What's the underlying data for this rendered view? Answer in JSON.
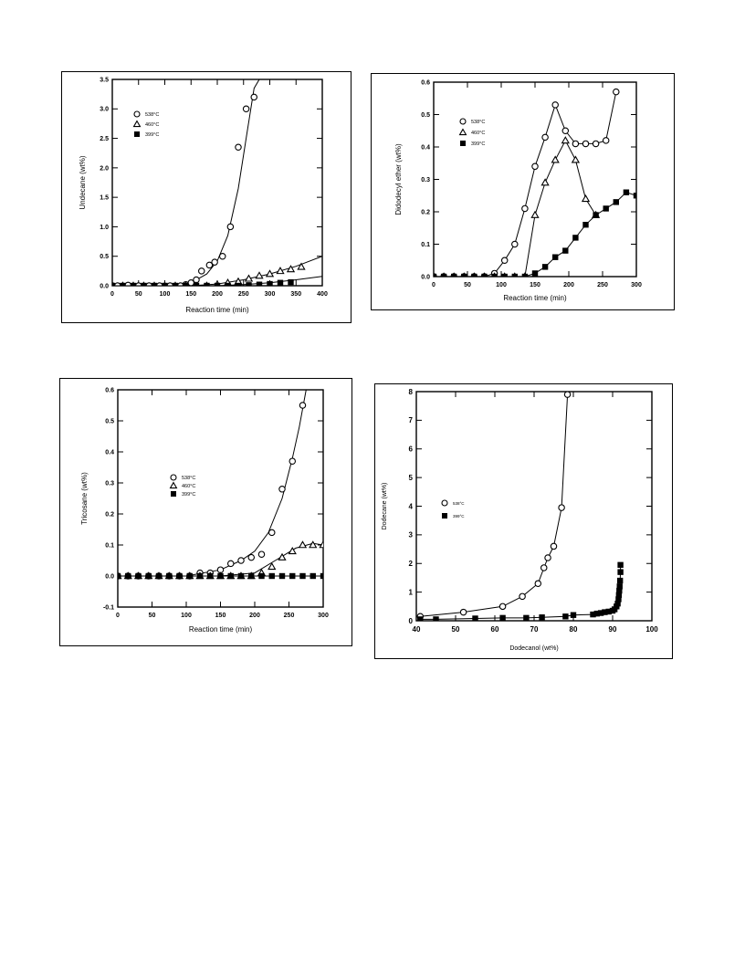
{
  "chart_data": [
    {
      "type": "scatter",
      "xlabel": "Reaction time (min)",
      "ylabel": "Undecane (wt%)",
      "xlim": [
        0,
        400
      ],
      "ylim": [
        0,
        3.5
      ],
      "xticks": [
        0,
        50,
        100,
        150,
        200,
        250,
        300,
        350,
        400
      ],
      "yticks": [
        0.0,
        0.5,
        1.0,
        1.5,
        2.0,
        2.5,
        3.0,
        3.5
      ],
      "xtick_labels": [
        "0",
        "50",
        "100",
        "150",
        "200",
        "250",
        "300",
        "350",
        "400"
      ],
      "ytick_labels": [
        "0.0",
        "0.5",
        "1.0",
        "1.5",
        "2.0",
        "2.5",
        "3.0",
        "3.5"
      ],
      "legend_position": "top-left",
      "series": [
        {
          "name": "538°C",
          "marker": "circle-open",
          "x": [
            0,
            10,
            30,
            50,
            70,
            90,
            110,
            130,
            140,
            150,
            160,
            170,
            185,
            195,
            210,
            225,
            240,
            255,
            270
          ],
          "y": [
            0,
            0,
            0.01,
            0,
            0,
            0,
            0,
            0,
            0.02,
            0.05,
            0.1,
            0.25,
            0.35,
            0.4,
            0.5,
            1.0,
            2.35,
            3.0,
            3.2
          ],
          "fit_x": [
            0,
            100,
            150,
            180,
            200,
            220,
            240,
            255,
            270,
            280
          ],
          "fit_y": [
            0,
            0,
            0.05,
            0.2,
            0.42,
            0.85,
            1.65,
            2.5,
            3.35,
            3.5
          ]
        },
        {
          "name": "460°C",
          "marker": "triangle-open",
          "x": [
            0,
            20,
            40,
            60,
            80,
            100,
            120,
            140,
            160,
            180,
            200,
            220,
            240,
            260,
            280,
            300,
            320,
            340,
            360
          ],
          "y": [
            0,
            0,
            0,
            0,
            0,
            0,
            0,
            0,
            0,
            0,
            0.02,
            0.05,
            0.07,
            0.12,
            0.17,
            0.2,
            0.25,
            0.28,
            0.32
          ],
          "fit_x": [
            0,
            150,
            200,
            250,
            300,
            350,
            400
          ],
          "fit_y": [
            0,
            0,
            0.03,
            0.1,
            0.2,
            0.33,
            0.5
          ]
        },
        {
          "name": "399°C",
          "marker": "square-filled",
          "x": [
            0,
            20,
            40,
            60,
            80,
            100,
            120,
            140,
            160,
            180,
            200,
            220,
            240,
            260,
            280,
            300,
            320,
            340
          ],
          "y": [
            0,
            0,
            0,
            0,
            0,
            0,
            0,
            0,
            0,
            0,
            0,
            0,
            0,
            0.01,
            0.02,
            0.03,
            0.05,
            0.06
          ],
          "fit_x": [
            0,
            200,
            250,
            300,
            350,
            400
          ],
          "fit_y": [
            0,
            0,
            0.02,
            0.05,
            0.1,
            0.16
          ]
        }
      ]
    },
    {
      "type": "line",
      "xlabel": "Reaction time (min)",
      "ylabel": "Didodecyl ether (wt%)",
      "xlim": [
        0,
        300
      ],
      "ylim": [
        0,
        0.6
      ],
      "xticks": [
        0,
        50,
        100,
        150,
        200,
        250,
        300
      ],
      "yticks": [
        0.0,
        0.1,
        0.2,
        0.3,
        0.4,
        0.5,
        0.6
      ],
      "xtick_labels": [
        "0",
        "50",
        "100",
        "150",
        "200",
        "250",
        "300"
      ],
      "ytick_labels": [
        "0.0",
        "0.1",
        "0.2",
        "0.3",
        "0.4",
        "0.5",
        "0.6"
      ],
      "legend_position": "top-left",
      "series": [
        {
          "name": "538°C",
          "marker": "circle-open",
          "x": [
            0,
            15,
            30,
            45,
            60,
            75,
            90,
            105,
            120,
            135,
            150,
            165,
            180,
            195,
            210,
            225,
            240,
            255,
            270
          ],
          "y": [
            0,
            0,
            0,
            0,
            0,
            0,
            0.01,
            0.05,
            0.1,
            0.21,
            0.34,
            0.43,
            0.53,
            0.45,
            0.41,
            0.41,
            0.41,
            0.42,
            0.57
          ]
        },
        {
          "name": "460°C",
          "marker": "triangle-open",
          "x": [
            0,
            15,
            30,
            45,
            60,
            75,
            90,
            105,
            120,
            135,
            150,
            165,
            180,
            195,
            210,
            225,
            240
          ],
          "y": [
            0,
            0,
            0,
            0,
            0,
            0,
            0,
            0,
            0,
            0,
            0.19,
            0.29,
            0.36,
            0.42,
            0.36,
            0.24,
            0.19
          ]
        },
        {
          "name": "399°C",
          "marker": "square-filled",
          "x": [
            0,
            15,
            30,
            45,
            60,
            75,
            90,
            105,
            120,
            135,
            150,
            165,
            180,
            195,
            210,
            225,
            240,
            255,
            270,
            285,
            300
          ],
          "y": [
            0,
            0,
            0,
            0,
            0,
            0,
            0,
            0,
            0,
            0,
            0.01,
            0.03,
            0.06,
            0.08,
            0.12,
            0.16,
            0.19,
            0.21,
            0.23,
            0.26,
            0.25
          ]
        }
      ]
    },
    {
      "type": "scatter",
      "xlabel": "Reaction time (min)",
      "ylabel": "Tricosane (wt%)",
      "xlim": [
        0,
        300
      ],
      "ylim": [
        -0.1,
        0.6
      ],
      "xticks": [
        0,
        50,
        100,
        150,
        200,
        250,
        300
      ],
      "yticks": [
        -0.1,
        0.0,
        0.1,
        0.2,
        0.3,
        0.4,
        0.5,
        0.6
      ],
      "xtick_labels": [
        "0",
        "50",
        "100",
        "150",
        "200",
        "250",
        "300"
      ],
      "ytick_labels": [
        "-0.1",
        "0.0",
        "0.1",
        "0.2",
        "0.3",
        "0.4",
        "0.5",
        "0.6"
      ],
      "legend_position": "center",
      "series": [
        {
          "name": "538°C",
          "marker": "circle-open",
          "x": [
            0,
            15,
            30,
            45,
            60,
            75,
            90,
            105,
            120,
            135,
            150,
            165,
            180,
            195,
            210,
            225,
            240,
            255,
            270
          ],
          "y": [
            0,
            0,
            0,
            0,
            0,
            0,
            0,
            0,
            0.01,
            0.01,
            0.02,
            0.04,
            0.05,
            0.06,
            0.07,
            0.14,
            0.28,
            0.37,
            0.55
          ],
          "fit_x": [
            0,
            100,
            150,
            180,
            200,
            220,
            240,
            255,
            265,
            275
          ],
          "fit_y": [
            0,
            0,
            0.02,
            0.05,
            0.08,
            0.14,
            0.25,
            0.38,
            0.48,
            0.6
          ]
        },
        {
          "name": "460°C",
          "marker": "triangle-open",
          "x": [
            0,
            15,
            30,
            45,
            60,
            75,
            90,
            105,
            120,
            135,
            150,
            165,
            180,
            195,
            210,
            225,
            240,
            255,
            270,
            285,
            300
          ],
          "y": [
            0,
            0,
            0,
            0,
            0,
            0,
            0,
            0,
            0,
            0,
            0,
            0,
            0,
            0,
            0.01,
            0.03,
            0.06,
            0.08,
            0.1,
            0.1,
            0.1
          ],
          "fit_x": [
            0,
            150,
            200,
            230,
            260,
            285,
            300
          ],
          "fit_y": [
            0,
            0,
            0.01,
            0.05,
            0.09,
            0.105,
            0.1
          ]
        },
        {
          "name": "399°C",
          "marker": "square-filled",
          "x": [
            0,
            15,
            30,
            45,
            60,
            75,
            90,
            105,
            120,
            135,
            150,
            165,
            180,
            195,
            210,
            225,
            240,
            255,
            270,
            285,
            300
          ],
          "y": [
            0,
            0,
            0,
            0,
            0,
            0,
            0,
            0,
            0,
            0,
            0,
            0,
            0,
            0,
            0,
            0,
            0,
            0,
            0,
            0,
            0
          ],
          "fit_x": [
            0,
            300
          ],
          "fit_y": [
            0,
            0
          ]
        }
      ]
    },
    {
      "type": "line",
      "xlabel": "Dodecanol (wt%)",
      "ylabel": "Dodecane (wt%)",
      "xlim": [
        40,
        100
      ],
      "ylim": [
        0,
        8
      ],
      "xticks": [
        40,
        50,
        60,
        70,
        80,
        90,
        100
      ],
      "yticks": [
        0,
        1,
        2,
        3,
        4,
        5,
        6,
        7,
        8
      ],
      "xtick_labels": [
        "40",
        "50",
        "60",
        "70",
        "80",
        "90",
        "100"
      ],
      "ytick_labels": [
        "0",
        "1",
        "2",
        "3",
        "4",
        "5",
        "6",
        "7",
        "8"
      ],
      "legend_position": "center-left",
      "series": [
        {
          "name": "538°C",
          "marker": "circle-open",
          "x": [
            41,
            52,
            62,
            67,
            71,
            72.5,
            73.5,
            75,
            77,
            78.5
          ],
          "y": [
            0.15,
            0.3,
            0.5,
            0.85,
            1.3,
            1.85,
            2.2,
            2.6,
            3.95,
            7.9
          ]
        },
        {
          "name": "399°C",
          "marker": "square-filled",
          "x": [
            41,
            45,
            55,
            62,
            68,
            72,
            78,
            80,
            85,
            86,
            87,
            88,
            89,
            90,
            90.5,
            91,
            91.3,
            91.5,
            91.6,
            91.7,
            91.8,
            91.9,
            92,
            92
          ],
          "y": [
            0.05,
            0.05,
            0.08,
            0.1,
            0.1,
            0.12,
            0.15,
            0.2,
            0.22,
            0.25,
            0.27,
            0.3,
            0.32,
            0.35,
            0.4,
            0.5,
            0.6,
            0.75,
            0.9,
            1.05,
            1.2,
            1.4,
            1.7,
            1.95
          ]
        }
      ]
    }
  ]
}
